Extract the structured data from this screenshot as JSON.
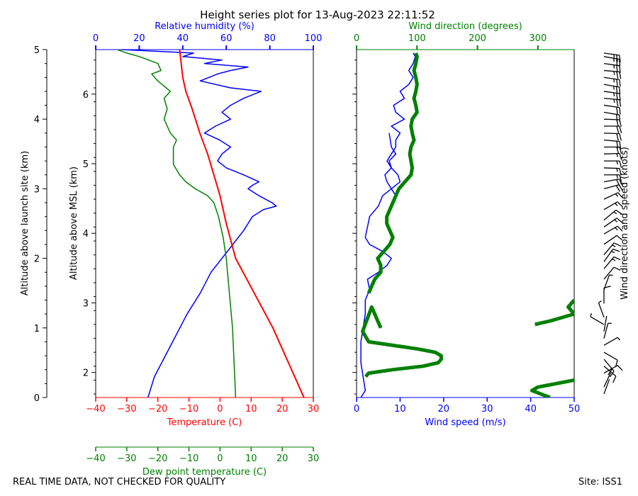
{
  "chart_data": [
    {
      "id": "thermo",
      "type": "line",
      "title": "Height series plot for 13-Aug-2023 22:11:52",
      "ylabel_left": "Altitude above launch site (km)",
      "ylabel_inner": "Altitude above MSL (km)",
      "y_agl_range": [
        0,
        5
      ],
      "y_agl_ticks": [
        "0",
        "1",
        "2",
        "3",
        "4",
        "5"
      ],
      "y_msl_ticks": [
        "2",
        "3",
        "4",
        "5",
        "6"
      ],
      "x_temp": {
        "label": "Temperature (C)",
        "range": [
          -40,
          30
        ],
        "ticks": [
          "−40",
          "−30",
          "−20",
          "−10",
          "0",
          "10",
          "20",
          "30"
        ],
        "color": "#ff0000"
      },
      "x_rh": {
        "label": "Relative humidity (%)",
        "range": [
          0,
          100
        ],
        "ticks": [
          "0",
          "20",
          "40",
          "60",
          "80",
          "100"
        ],
        "color": "#0000ff"
      },
      "x_dew": {
        "label": "Dew point temperature (C)",
        "range": [
          -40,
          30
        ],
        "ticks": [
          "−40",
          "−30",
          "−20",
          "−10",
          "0",
          "10",
          "20",
          "30"
        ],
        "color": "#008000"
      },
      "series": [
        {
          "name": "Temperature",
          "color": "#ff0000",
          "points": [
            [
              27,
              0
            ],
            [
              22,
              0.5
            ],
            [
              17,
              1.0
            ],
            [
              11,
              1.5
            ],
            [
              5,
              2.0
            ],
            [
              2,
              2.5
            ],
            [
              0,
              2.9
            ],
            [
              -2,
              3.2
            ],
            [
              -4,
              3.5
            ],
            [
              -6.5,
              3.8
            ],
            [
              -9,
              4.15
            ],
            [
              -11,
              4.4
            ],
            [
              -12,
              4.6
            ],
            [
              -12.5,
              4.8
            ],
            [
              -13,
              5.0
            ]
          ]
        },
        {
          "name": "Relative humidity",
          "color": "#0000ff",
          "points": [
            [
              24,
              0
            ],
            [
              27,
              0.3
            ],
            [
              32,
              0.6
            ],
            [
              37,
              0.9
            ],
            [
              42,
              1.2
            ],
            [
              48,
              1.5
            ],
            [
              53,
              1.8
            ],
            [
              58,
              2.0
            ],
            [
              63,
              2.2
            ],
            [
              68,
              2.4
            ],
            [
              72,
              2.6
            ],
            [
              77,
              2.7
            ],
            [
              83,
              2.75
            ],
            [
              81,
              2.8
            ],
            [
              75,
              2.9
            ],
            [
              70,
              3.0
            ],
            [
              72,
              3.05
            ],
            [
              75,
              3.1
            ],
            [
              68,
              3.2
            ],
            [
              60,
              3.3
            ],
            [
              56,
              3.4
            ],
            [
              58,
              3.5
            ],
            [
              62,
              3.6
            ],
            [
              57,
              3.7
            ],
            [
              50,
              3.8
            ],
            [
              55,
              3.9
            ],
            [
              62,
              4.0
            ],
            [
              58,
              4.1
            ],
            [
              62,
              4.2
            ],
            [
              68,
              4.3
            ],
            [
              76,
              4.4
            ],
            [
              62,
              4.45
            ],
            [
              48,
              4.55
            ],
            [
              56,
              4.65
            ],
            [
              62,
              4.7
            ],
            [
              70,
              4.75
            ],
            [
              50,
              4.8
            ],
            [
              58,
              4.85
            ],
            [
              40,
              4.9
            ],
            [
              45,
              4.95
            ],
            [
              12,
              5.0
            ]
          ]
        },
        {
          "name": "Dew point",
          "color": "#008000",
          "points": [
            [
              5,
              0
            ],
            [
              4.5,
              0.5
            ],
            [
              4,
              1.0
            ],
            [
              3,
              1.5
            ],
            [
              2,
              2.0
            ],
            [
              1,
              2.3
            ],
            [
              -0.5,
              2.6
            ],
            [
              -2,
              2.8
            ],
            [
              -4,
              2.9
            ],
            [
              -8,
              3.0
            ],
            [
              -11,
              3.1
            ],
            [
              -13,
              3.2
            ],
            [
              -15,
              3.35
            ],
            [
              -15,
              3.6
            ],
            [
              -14,
              3.7
            ],
            [
              -16,
              3.8
            ],
            [
              -18,
              4.0
            ],
            [
              -17,
              4.15
            ],
            [
              -18,
              4.3
            ],
            [
              -16,
              4.4
            ],
            [
              -20,
              4.55
            ],
            [
              -22,
              4.65
            ],
            [
              -19,
              4.7
            ],
            [
              -20,
              4.8
            ],
            [
              -26,
              4.9
            ],
            [
              -30,
              4.95
            ],
            [
              -33,
              5.0
            ]
          ]
        }
      ]
    },
    {
      "id": "wind",
      "type": "line",
      "x_speed": {
        "label": "Wind speed (m/s)",
        "range": [
          0,
          50
        ],
        "ticks": [
          "0",
          "10",
          "20",
          "30",
          "40",
          "50"
        ],
        "color": "#0000ff"
      },
      "x_dir": {
        "label": "Wind direction (degrees)",
        "range": [
          0,
          360
        ],
        "ticks": [
          "0",
          "100",
          "200",
          "300"
        ],
        "tick_values": [
          0,
          100,
          200,
          300
        ],
        "color": "#008000"
      },
      "ylabel_right": "Wind direction and speed (knots)",
      "speed_series": {
        "name": "Wind speed",
        "color": "#0000ff",
        "points": [
          [
            1,
            0
          ],
          [
            2,
            0.1
          ],
          [
            1.5,
            0.3
          ],
          [
            1,
            0.5
          ],
          [
            1,
            0.8
          ],
          [
            1.5,
            1.0
          ],
          [
            2,
            1.2
          ],
          [
            2,
            1.4
          ],
          [
            3,
            1.55
          ],
          [
            2.5,
            1.7
          ],
          [
            5,
            1.8
          ],
          [
            7,
            1.9
          ],
          [
            8,
            2.0
          ],
          [
            6,
            2.1
          ],
          [
            3,
            2.2
          ],
          [
            2,
            2.3
          ],
          [
            2.5,
            2.45
          ],
          [
            3,
            2.6
          ],
          [
            5,
            2.75
          ],
          [
            6,
            2.9
          ],
          [
            8,
            3.0
          ],
          [
            10,
            3.1
          ],
          [
            9.5,
            3.2
          ],
          [
            8,
            3.3
          ],
          [
            7,
            3.4
          ],
          [
            8,
            3.5
          ],
          [
            9,
            3.6
          ],
          [
            9,
            3.7
          ],
          [
            10,
            3.8
          ],
          [
            8,
            3.9
          ],
          [
            11,
            4.0
          ],
          [
            9,
            4.1
          ],
          [
            8.5,
            4.2
          ],
          [
            11,
            4.3
          ],
          [
            10,
            4.4
          ],
          [
            12,
            4.5
          ],
          [
            13,
            4.6
          ],
          [
            12,
            4.7
          ],
          [
            13,
            4.8
          ],
          [
            13.5,
            4.9
          ],
          [
            13,
            4.95
          ]
        ]
      },
      "speed_short": {
        "name": "Wind speed (upper branch)",
        "color": "#0000ff",
        "points": [
          [
            8,
            2.8
          ],
          [
            9,
            2.9
          ],
          [
            7,
            3.1
          ],
          [
            6.5,
            3.2
          ],
          [
            8,
            3.3
          ],
          [
            7.5,
            3.4
          ],
          [
            9,
            3.5
          ],
          [
            8,
            3.6
          ],
          [
            7.5,
            3.8
          ]
        ]
      },
      "direction_series": {
        "name": "Wind direction",
        "color": "#008000",
        "points": [
          [
            15,
            0.3
          ],
          [
            20,
            0.35
          ],
          [
            60,
            0.4
          ],
          [
            110,
            0.45
          ],
          [
            135,
            0.5
          ],
          [
            140,
            0.55
          ],
          [
            140,
            0.6
          ],
          [
            130,
            0.65
          ],
          [
            100,
            0.7
          ],
          [
            60,
            0.75
          ],
          [
            20,
            0.8
          ],
          [
            10,
            0.95
          ],
          [
            25,
            1.3
          ],
          [
            40,
            1.0
          ],
          [
            295,
            1.05
          ],
          [
            320,
            1.1
          ],
          [
            340,
            1.15
          ],
          [
            360,
            1.2
          ],
          [
            350,
            1.3
          ],
          [
            360,
            1.4
          ],
          [
            20,
            1.5
          ],
          [
            25,
            1.6
          ],
          [
            30,
            1.7
          ],
          [
            35,
            1.75
          ],
          [
            40,
            1.8
          ],
          [
            40,
            1.9
          ],
          [
            35,
            2.0
          ],
          [
            45,
            2.1
          ],
          [
            55,
            2.2
          ],
          [
            60,
            2.3
          ],
          [
            55,
            2.4
          ],
          [
            50,
            2.5
          ],
          [
            50,
            2.6
          ],
          [
            60,
            2.8
          ],
          [
            65,
            2.9
          ],
          [
            70,
            3.0
          ],
          [
            80,
            3.1
          ],
          [
            90,
            3.2
          ],
          [
            92,
            3.3
          ],
          [
            90,
            3.4
          ],
          [
            88,
            3.5
          ],
          [
            90,
            3.6
          ],
          [
            95,
            3.7
          ],
          [
            92,
            3.8
          ],
          [
            90,
            3.9
          ],
          [
            92,
            4.0
          ],
          [
            100,
            4.1
          ],
          [
            98,
            4.2
          ],
          [
            95,
            4.3
          ],
          [
            98,
            4.4
          ],
          [
            100,
            4.5
          ],
          [
            98,
            4.6
          ],
          [
            95,
            4.7
          ],
          [
            98,
            4.8
          ],
          [
            100,
            4.9
          ],
          [
            98,
            4.95
          ]
        ]
      },
      "direction_lower": {
        "name": "Wind direction (low)",
        "color": "#008000",
        "points": [
          [
            320,
            0.0
          ],
          [
            305,
            0.05
          ],
          [
            290,
            0.1
          ],
          [
            300,
            0.15
          ],
          [
            330,
            0.2
          ],
          [
            360,
            0.25
          ]
        ]
      },
      "barbs": [
        {
          "z": 0.05,
          "dir": 20,
          "kt": 4
        },
        {
          "z": 0.15,
          "dir": 25,
          "kt": 4
        },
        {
          "z": 0.35,
          "dir": 60,
          "kt": 10
        },
        {
          "z": 0.45,
          "dir": 130,
          "kt": 14
        },
        {
          "z": 0.55,
          "dir": 140,
          "kt": 20
        },
        {
          "z": 0.65,
          "dir": 120,
          "kt": 10
        },
        {
          "z": 0.75,
          "dir": 60,
          "kt": 5
        },
        {
          "z": 0.85,
          "dir": 15,
          "kt": 5
        },
        {
          "z": 0.95,
          "dir": 10,
          "kt": 2
        },
        {
          "z": 1.05,
          "dir": 300,
          "kt": 5
        },
        {
          "z": 1.15,
          "dir": 340,
          "kt": 5
        },
        {
          "z": 1.35,
          "dir": 360,
          "kt": 10
        },
        {
          "z": 1.55,
          "dir": 20,
          "kt": 5
        },
        {
          "z": 1.7,
          "dir": 40,
          "kt": 10
        },
        {
          "z": 1.85,
          "dir": 40,
          "kt": 15
        },
        {
          "z": 1.95,
          "dir": 35,
          "kt": 15
        },
        {
          "z": 2.05,
          "dir": 40,
          "kt": 15
        },
        {
          "z": 2.2,
          "dir": 55,
          "kt": 10
        },
        {
          "z": 2.35,
          "dir": 60,
          "kt": 15
        },
        {
          "z": 2.45,
          "dir": 55,
          "kt": 15
        },
        {
          "z": 2.55,
          "dir": 50,
          "kt": 15
        },
        {
          "z": 2.7,
          "dir": 60,
          "kt": 15
        },
        {
          "z": 2.85,
          "dir": 65,
          "kt": 15
        },
        {
          "z": 3.0,
          "dir": 75,
          "kt": 20
        },
        {
          "z": 3.1,
          "dir": 80,
          "kt": 20
        },
        {
          "z": 3.2,
          "dir": 90,
          "kt": 15
        },
        {
          "z": 3.3,
          "dir": 92,
          "kt": 15
        },
        {
          "z": 3.4,
          "dir": 90,
          "kt": 15
        },
        {
          "z": 3.5,
          "dir": 88,
          "kt": 15
        },
        {
          "z": 3.6,
          "dir": 90,
          "kt": 20
        },
        {
          "z": 3.7,
          "dir": 95,
          "kt": 20
        },
        {
          "z": 3.8,
          "dir": 92,
          "kt": 20
        },
        {
          "z": 3.9,
          "dir": 90,
          "kt": 20
        },
        {
          "z": 4.0,
          "dir": 92,
          "kt": 20
        },
        {
          "z": 4.1,
          "dir": 100,
          "kt": 20
        },
        {
          "z": 4.2,
          "dir": 98,
          "kt": 20
        },
        {
          "z": 4.3,
          "dir": 95,
          "kt": 25
        },
        {
          "z": 4.4,
          "dir": 98,
          "kt": 25
        },
        {
          "z": 4.5,
          "dir": 100,
          "kt": 25
        },
        {
          "z": 4.6,
          "dir": 98,
          "kt": 25
        },
        {
          "z": 4.7,
          "dir": 95,
          "kt": 25
        },
        {
          "z": 4.8,
          "dir": 98,
          "kt": 25
        },
        {
          "z": 4.9,
          "dir": 100,
          "kt": 25
        },
        {
          "z": 4.95,
          "dir": 98,
          "kt": 25
        }
      ]
    }
  ],
  "footer": {
    "left": "REAL TIME DATA, NOT CHECKED FOR QUALITY",
    "right": "Site: ISS1"
  }
}
